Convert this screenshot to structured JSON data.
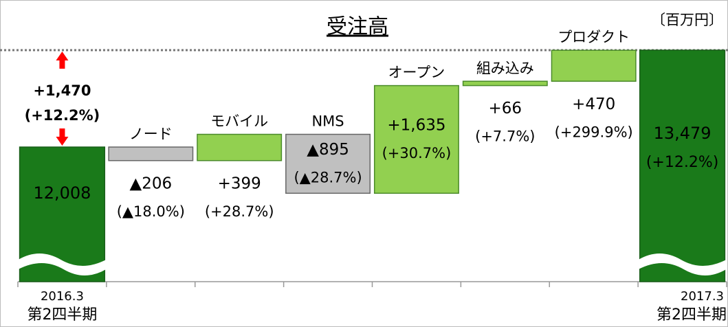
{
  "chart_data": {
    "type": "waterfall",
    "title": "受注高",
    "unit": "〔百万円〕",
    "categories": [
      "2016.3",
      "ノード",
      "モバイル",
      "NMS",
      "オープン",
      "組み込み",
      "プロダクト",
      "2017.3"
    ],
    "category_sublabels": [
      "第2四半期",
      null,
      null,
      null,
      null,
      null,
      null,
      "第2四半期"
    ],
    "values": [
      12008,
      -206,
      399,
      -895,
      1635,
      66,
      470,
      13479
    ],
    "value_labels": [
      "12,008",
      "▲206",
      "+399",
      "▲895",
      "+1,635",
      "+66",
      "+470",
      "13,479"
    ],
    "percent_labels": [
      null,
      "(▲18.0%)",
      "(+28.7%)",
      "(▲28.7%)",
      "(+30.7%)",
      "(+7.7%)",
      "(+299.9%)",
      "(+12.2%)"
    ],
    "totals": [
      true,
      false,
      false,
      false,
      false,
      false,
      false,
      true
    ],
    "colors": {
      "total": "#1a7a1a",
      "increase": "#92d050",
      "decrease": "#c0c0c0"
    },
    "annotation": {
      "lines": [
        "+1,470",
        "(+12.2%)"
      ],
      "color": "#ff0000"
    },
    "ylim": [
      9964,
      14084
    ]
  }
}
